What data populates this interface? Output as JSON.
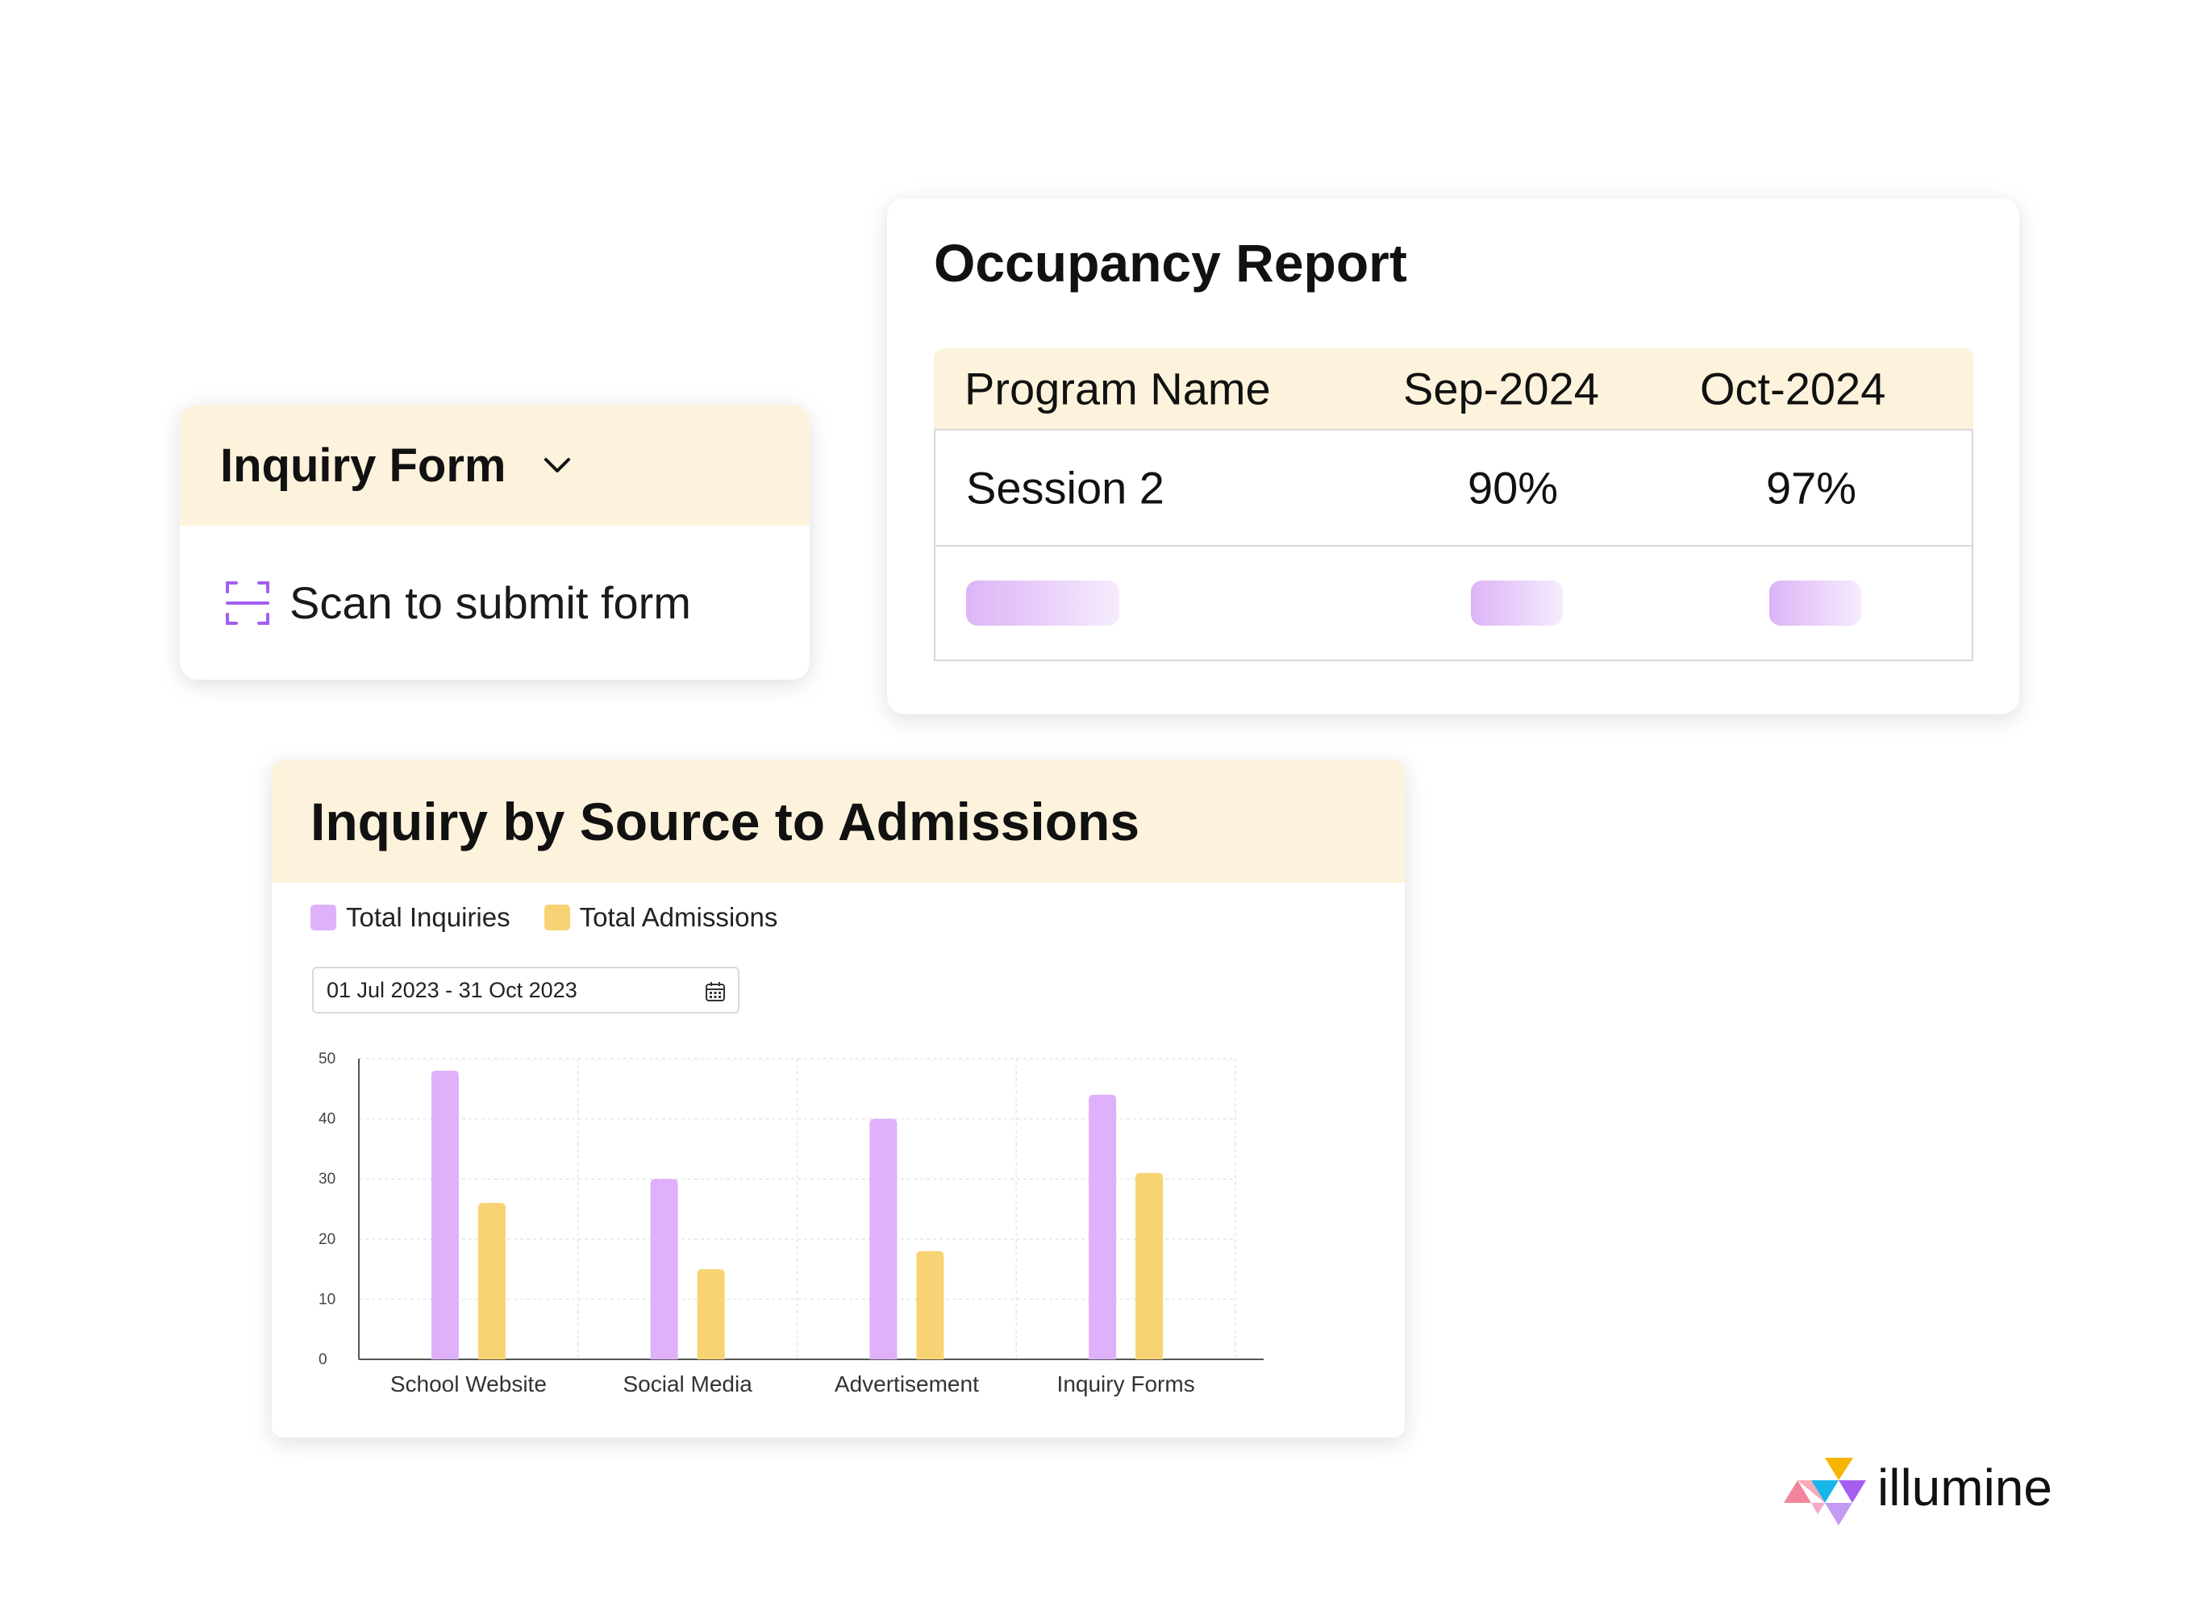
{
  "inquiry_form": {
    "title": "Inquiry Form",
    "scan_label": "Scan to submit form"
  },
  "occupancy": {
    "title": "Occupancy Report",
    "columns": [
      "Program Name",
      "Sep-2024",
      "Oct-2024"
    ],
    "rows": [
      {
        "program": "Session 2",
        "sep": "90%",
        "oct": "97%"
      }
    ]
  },
  "inquiry_chart": {
    "title": "Inquiry by Source to Admissions",
    "date_range": "01 Jul 2023 - 31 Oct 2023"
  },
  "chart_data": {
    "type": "bar",
    "categories": [
      "School Website",
      "Social Media",
      "Advertisement",
      "Inquiry Forms"
    ],
    "series": [
      {
        "name": "Total Inquiries",
        "color": "#deb1fa",
        "values": [
          48,
          30,
          40,
          44
        ]
      },
      {
        "name": "Total Admissions",
        "color": "#f8d373",
        "values": [
          26,
          15,
          18,
          31
        ]
      }
    ],
    "ylim": [
      0,
      50
    ],
    "yticks": [
      0,
      10,
      20,
      30,
      40,
      50
    ],
    "grid": true,
    "legend": "top-left"
  },
  "brand": {
    "name": "illumine",
    "accent_color": "#f8d373",
    "header_color": "#fdf3dc",
    "purple": "#a15ff0"
  }
}
